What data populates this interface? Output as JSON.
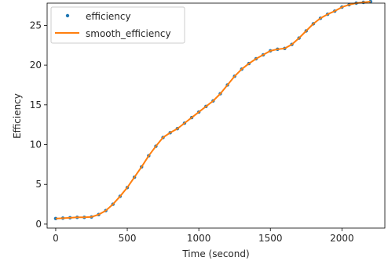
{
  "chart_data": {
    "type": "line",
    "title": "",
    "xlabel": "Time (second)",
    "ylabel": "Efficiency",
    "xlim": [
      -60,
      2300
    ],
    "ylim": [
      -0.5,
      27.8
    ],
    "xticks": [
      0,
      500,
      1000,
      1500,
      2000
    ],
    "yticks": [
      0,
      5,
      10,
      15,
      20,
      25
    ],
    "grid": false,
    "legend_position": "top-left",
    "series": [
      {
        "name": "efficiency",
        "style": "scatter",
        "color": "#1f77b4",
        "x": [
          0,
          50,
          100,
          150,
          200,
          250,
          300,
          350,
          400,
          450,
          500,
          550,
          600,
          650,
          700,
          750,
          800,
          850,
          900,
          950,
          1000,
          1050,
          1100,
          1150,
          1200,
          1250,
          1300,
          1350,
          1400,
          1450,
          1500,
          1550,
          1600,
          1650,
          1700,
          1750,
          1800,
          1850,
          1900,
          1950,
          2000,
          2050,
          2100,
          2150,
          2200
        ],
        "values": [
          0.7,
          0.75,
          0.8,
          0.85,
          0.85,
          0.9,
          1.2,
          1.7,
          2.5,
          3.5,
          4.6,
          5.9,
          7.2,
          8.6,
          9.8,
          10.9,
          11.5,
          12.0,
          12.7,
          13.4,
          14.1,
          14.8,
          15.5,
          16.4,
          17.5,
          18.6,
          19.5,
          20.2,
          20.8,
          21.3,
          21.8,
          22.0,
          22.1,
          22.6,
          23.4,
          24.3,
          25.2,
          25.9,
          26.4,
          26.8,
          27.3,
          27.6,
          27.8,
          27.9,
          28.0
        ]
      },
      {
        "name": "smooth_efficiency",
        "style": "line",
        "color": "#ff7f0e",
        "x": [
          0,
          50,
          100,
          150,
          200,
          250,
          300,
          350,
          400,
          450,
          500,
          550,
          600,
          650,
          700,
          750,
          800,
          850,
          900,
          950,
          1000,
          1050,
          1100,
          1150,
          1200,
          1250,
          1300,
          1350,
          1400,
          1450,
          1500,
          1550,
          1600,
          1650,
          1700,
          1750,
          1800,
          1850,
          1900,
          1950,
          2000,
          2050,
          2100,
          2150,
          2200
        ],
        "values": [
          0.7,
          0.75,
          0.8,
          0.85,
          0.85,
          0.9,
          1.2,
          1.7,
          2.5,
          3.5,
          4.6,
          5.9,
          7.2,
          8.6,
          9.8,
          10.9,
          11.5,
          12.0,
          12.7,
          13.4,
          14.1,
          14.8,
          15.5,
          16.4,
          17.5,
          18.6,
          19.5,
          20.2,
          20.8,
          21.3,
          21.8,
          22.0,
          22.1,
          22.6,
          23.4,
          24.3,
          25.2,
          25.9,
          26.4,
          26.8,
          27.3,
          27.6,
          27.8,
          27.9,
          28.0
        ]
      }
    ]
  }
}
